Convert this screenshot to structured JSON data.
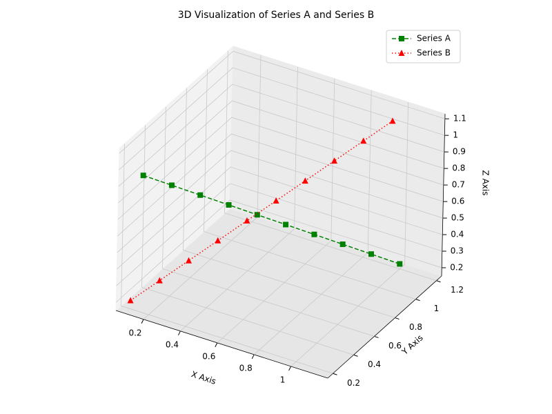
{
  "chart_data": {
    "type": "line3d",
    "title": "3D Visualization of Series A and Series B",
    "xlabel": "X Axis",
    "ylabel": "Y Axis",
    "zlabel": "Z Axis",
    "series": [
      {
        "name": "Series A",
        "color": "#008000",
        "marker": "square",
        "linestyle": "dashed",
        "x": [
          0.1,
          0.2,
          0.3,
          0.4,
          0.5,
          0.6,
          0.7,
          0.8,
          0.9,
          1.0
        ],
        "y": [
          0.3,
          0.4,
          0.5,
          0.6,
          0.7,
          0.8,
          0.9,
          1.0,
          1.1,
          1.2
        ],
        "z": [
          0.9,
          0.82,
          0.74,
          0.66,
          0.58,
          0.5,
          0.42,
          0.34,
          0.26,
          0.18
        ]
      },
      {
        "name": "Series B",
        "color": "#ff0000",
        "marker": "triangle",
        "linestyle": "dotted",
        "x": [
          0.1,
          0.2,
          0.3,
          0.4,
          0.5,
          0.6,
          0.7,
          0.8,
          0.9,
          1.0
        ],
        "y": [
          0.2,
          0.3,
          0.4,
          0.5,
          0.6,
          0.7,
          0.8,
          0.9,
          1.0,
          1.1
        ],
        "z": [
          0.2,
          0.3,
          0.4,
          0.5,
          0.6,
          0.7,
          0.8,
          0.9,
          1.0,
          1.1
        ]
      }
    ],
    "xlim": [
      0.05,
      1.2
    ],
    "ylim": [
      0.15,
      1.25
    ],
    "zlim": [
      0.15,
      1.13
    ],
    "xticks": [
      0.2,
      0.4,
      0.6,
      0.8,
      1.0
    ],
    "yticks": [
      0.2,
      0.4,
      0.6,
      0.8,
      1.0,
      1.2
    ],
    "zticks": [
      0.2,
      0.3,
      0.4,
      0.5,
      0.6,
      0.7,
      0.8,
      0.9,
      1.0,
      1.1
    ],
    "grid": true,
    "legend": "upper right"
  }
}
